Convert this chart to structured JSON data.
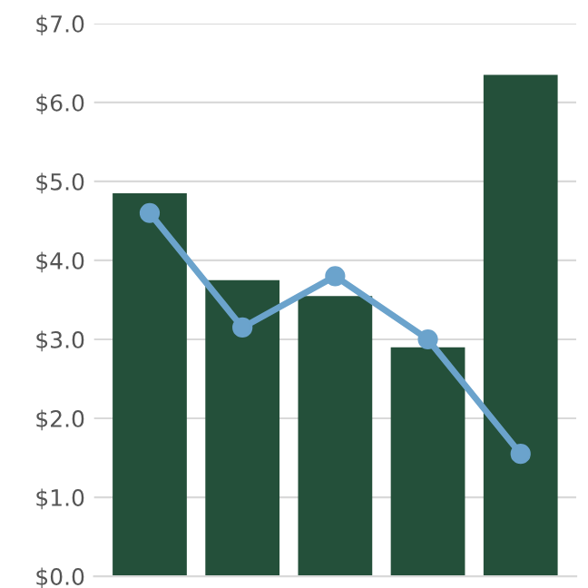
{
  "chart_data": {
    "type": "bar",
    "categories": [
      null,
      null,
      null,
      null,
      null
    ],
    "series": [
      {
        "color": "#24503a",
        "values": [
          4.85,
          3.75,
          3.55,
          2.9,
          6.35
        ]
      },
      {
        "type": "line",
        "color": "#6ba3cc",
        "values": [
          4.6,
          3.15,
          3.8,
          3.0,
          1.55
        ],
        "marker": "circle",
        "line_style": "solid"
      }
    ],
    "ylim": [
      0,
      7
    ],
    "yticks": [
      {
        "value": 0,
        "label": "$0.0"
      },
      {
        "value": 1,
        "label": "$1.0"
      },
      {
        "value": 2,
        "label": "$2.0"
      },
      {
        "value": 3,
        "label": "$3.0"
      },
      {
        "value": 4,
        "label": "$4.0"
      },
      {
        "value": 5,
        "label": "$5.0"
      },
      {
        "value": 6,
        "label": "$6.0"
      },
      {
        "value": 7,
        "label": "$7.0"
      }
    ],
    "grid": "y",
    "legend": false
  }
}
